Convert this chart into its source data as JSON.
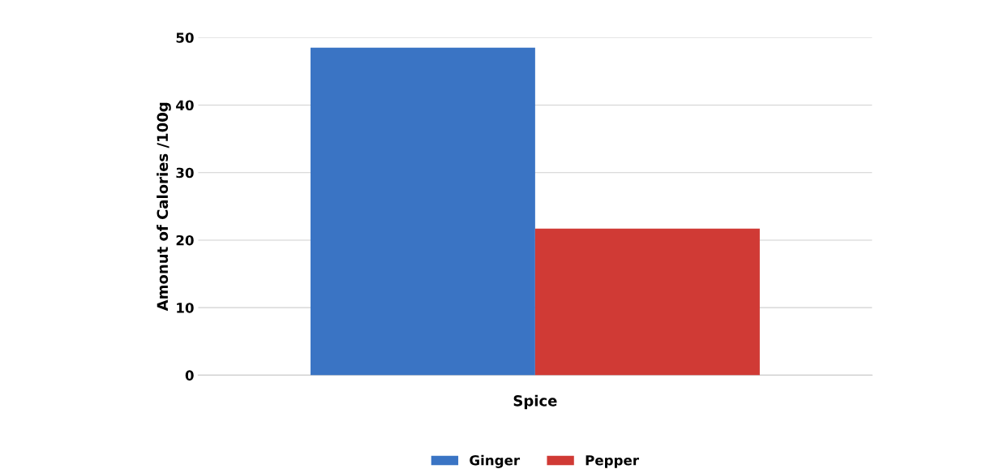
{
  "chart_data": {
    "type": "bar",
    "xlabel": "Spice",
    "ylabel": "Amonut of Calories /100g",
    "categories": [
      null
    ],
    "series": [
      {
        "name": "Ginger",
        "color": "#3a74c4",
        "values": [
          48.5
        ]
      },
      {
        "name": "Pepper",
        "color": "#d03a35",
        "values": [
          21.7
        ]
      }
    ],
    "ylim": [
      0,
      50
    ],
    "yticks": [
      0,
      10,
      20,
      30,
      40,
      50
    ],
    "grid": "y",
    "legend": "bottom"
  }
}
